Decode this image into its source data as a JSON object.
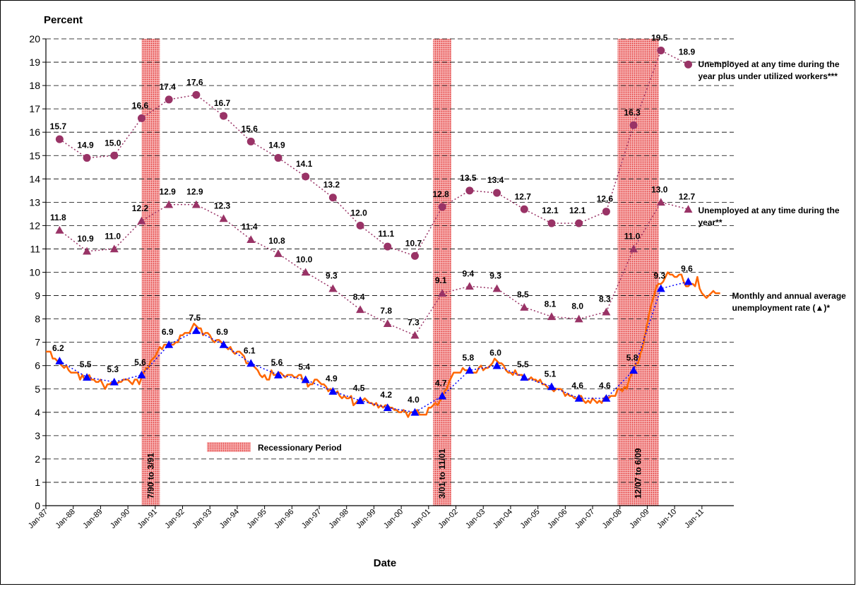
{
  "chart_data": {
    "type": "line",
    "ylabel": "Percent",
    "xlabel": "Date",
    "ylim": [
      0,
      20
    ],
    "yticks": [
      0,
      1,
      2,
      3,
      4,
      5,
      6,
      7,
      8,
      9,
      10,
      11,
      12,
      13,
      14,
      15,
      16,
      17,
      18,
      19,
      20
    ],
    "xlim": [
      "1987-01",
      "2012-03"
    ],
    "xticks": [
      {
        "value": "1987-01",
        "label": "Jan-87"
      },
      {
        "value": "1988-01",
        "label": "Jan-88"
      },
      {
        "value": "1989-01",
        "label": "Jan-89"
      },
      {
        "value": "1990-01",
        "label": "Jan-90"
      },
      {
        "value": "1991-01",
        "label": "Jan-91"
      },
      {
        "value": "1992-01",
        "label": "Jan-92"
      },
      {
        "value": "1993-01",
        "label": "Jan-93"
      },
      {
        "value": "1994-01",
        "label": "Jan-94"
      },
      {
        "value": "1995-01",
        "label": "Jan-95"
      },
      {
        "value": "1996-01",
        "label": "Jan-96"
      },
      {
        "value": "1997-01",
        "label": "Jan-97"
      },
      {
        "value": "1998-01",
        "label": "Jan-98"
      },
      {
        "value": "1999-01",
        "label": "Jan-99"
      },
      {
        "value": "2000-01",
        "label": "Jan-00"
      },
      {
        "value": "2001-01",
        "label": "Jan-01"
      },
      {
        "value": "2002-01",
        "label": "Jan-02"
      },
      {
        "value": "2003-01",
        "label": "Jan-03"
      },
      {
        "value": "2004-01",
        "label": "Jan-04"
      },
      {
        "value": "2005-01",
        "label": "Jan-05"
      },
      {
        "value": "2006-01",
        "label": "Jan-06"
      },
      {
        "value": "2007-01",
        "label": "Jan-07"
      },
      {
        "value": "2008-01",
        "label": "Jan-08"
      },
      {
        "value": "2009-01",
        "label": "Jan-09"
      },
      {
        "value": "2010-01",
        "label": "Jan-10"
      },
      {
        "value": "2011-01",
        "label": "Jan-11"
      }
    ],
    "grid": true,
    "recession_legend": "Recessionary Period",
    "recessions": [
      {
        "start": "1990-07",
        "end": "1991-03",
        "label": "7/90 to 3/91"
      },
      {
        "start": "2001-03",
        "end": "2001-11",
        "label": "3/01 to 11/01"
      },
      {
        "start": "2007-12",
        "end": "2009-06",
        "label": "12/07 to 6/09"
      }
    ],
    "series": [
      {
        "color": "#ff6600",
        "marker": "none",
        "style": "solid",
        "x": [
          "1987-01",
          "1987-02",
          "1987-03",
          "1987-04",
          "1987-05",
          "1987-06",
          "1987-07",
          "1987-08",
          "1987-09",
          "1987-10",
          "1987-11",
          "1987-12",
          "1988-01",
          "1988-02",
          "1988-03",
          "1988-04",
          "1988-05",
          "1988-06",
          "1988-07",
          "1988-08",
          "1988-09",
          "1988-10",
          "1988-11",
          "1988-12",
          "1989-01",
          "1989-02",
          "1989-03",
          "1989-04",
          "1989-05",
          "1989-06",
          "1989-07",
          "1989-08",
          "1989-09",
          "1989-10",
          "1989-11",
          "1989-12",
          "1990-01",
          "1990-02",
          "1990-03",
          "1990-04",
          "1990-05",
          "1990-06",
          "1990-07",
          "1990-08",
          "1990-09",
          "1990-10",
          "1990-11",
          "1990-12",
          "1991-01",
          "1991-02",
          "1991-03",
          "1991-04",
          "1991-05",
          "1991-06",
          "1991-07",
          "1991-08",
          "1991-09",
          "1991-10",
          "1991-11",
          "1991-12",
          "1992-01",
          "1992-02",
          "1992-03",
          "1992-04",
          "1992-05",
          "1992-06",
          "1992-07",
          "1992-08",
          "1992-09",
          "1992-10",
          "1992-11",
          "1992-12",
          "1993-01",
          "1993-02",
          "1993-03",
          "1993-04",
          "1993-05",
          "1993-06",
          "1993-07",
          "1993-08",
          "1993-09",
          "1993-10",
          "1993-11",
          "1993-12",
          "1994-01",
          "1994-02",
          "1994-03",
          "1994-04",
          "1994-05",
          "1994-06",
          "1994-07",
          "1994-08",
          "1994-09",
          "1994-10",
          "1994-11",
          "1994-12",
          "1995-01",
          "1995-02",
          "1995-03",
          "1995-04",
          "1995-05",
          "1995-06",
          "1995-07",
          "1995-08",
          "1995-09",
          "1995-10",
          "1995-11",
          "1995-12",
          "1996-01",
          "1996-02",
          "1996-03",
          "1996-04",
          "1996-05",
          "1996-06",
          "1996-07",
          "1996-08",
          "1996-09",
          "1996-10",
          "1996-11",
          "1996-12",
          "1997-01",
          "1997-02",
          "1997-03",
          "1997-04",
          "1997-05",
          "1997-06",
          "1997-07",
          "1997-08",
          "1997-09",
          "1997-10",
          "1997-11",
          "1997-12",
          "1998-01",
          "1998-02",
          "1998-03",
          "1998-04",
          "1998-05",
          "1998-06",
          "1998-07",
          "1998-08",
          "1998-09",
          "1998-10",
          "1998-11",
          "1998-12",
          "1999-01",
          "1999-02",
          "1999-03",
          "1999-04",
          "1999-05",
          "1999-06",
          "1999-07",
          "1999-08",
          "1999-09",
          "1999-10",
          "1999-11",
          "1999-12",
          "2000-01",
          "2000-02",
          "2000-03",
          "2000-04",
          "2000-05",
          "2000-06",
          "2000-07",
          "2000-08",
          "2000-09",
          "2000-10",
          "2000-11",
          "2000-12",
          "2001-01",
          "2001-02",
          "2001-03",
          "2001-04",
          "2001-05",
          "2001-06",
          "2001-07",
          "2001-08",
          "2001-09",
          "2001-10",
          "2001-11",
          "2001-12",
          "2002-01",
          "2002-02",
          "2002-03",
          "2002-04",
          "2002-05",
          "2002-06",
          "2002-07",
          "2002-08",
          "2002-09",
          "2002-10",
          "2002-11",
          "2002-12",
          "2003-01",
          "2003-02",
          "2003-03",
          "2003-04",
          "2003-05",
          "2003-06",
          "2003-07",
          "2003-08",
          "2003-09",
          "2003-10",
          "2003-11",
          "2003-12",
          "2004-01",
          "2004-02",
          "2004-03",
          "2004-04",
          "2004-05",
          "2004-06",
          "2004-07",
          "2004-08",
          "2004-09",
          "2004-10",
          "2004-11",
          "2004-12",
          "2005-01",
          "2005-02",
          "2005-03",
          "2005-04",
          "2005-05",
          "2005-06",
          "2005-07",
          "2005-08",
          "2005-09",
          "2005-10",
          "2005-11",
          "2005-12",
          "2006-01",
          "2006-02",
          "2006-03",
          "2006-04",
          "2006-05",
          "2006-06",
          "2006-07",
          "2006-08",
          "2006-09",
          "2006-10",
          "2006-11",
          "2006-12",
          "2007-01",
          "2007-02",
          "2007-03",
          "2007-04",
          "2007-05",
          "2007-06",
          "2007-07",
          "2007-08",
          "2007-09",
          "2007-10",
          "2007-11",
          "2007-12",
          "2008-01",
          "2008-02",
          "2008-03",
          "2008-04",
          "2008-05",
          "2008-06",
          "2008-07",
          "2008-08",
          "2008-09",
          "2008-10",
          "2008-11",
          "2008-12",
          "2009-01",
          "2009-02",
          "2009-03",
          "2009-04",
          "2009-05",
          "2009-06",
          "2009-07",
          "2009-08",
          "2009-09",
          "2009-10",
          "2009-11",
          "2009-12",
          "2010-01",
          "2010-02",
          "2010-03",
          "2010-04",
          "2010-05",
          "2010-06",
          "2010-07",
          "2010-08",
          "2010-09",
          "2010-10",
          "2010-11",
          "2010-12",
          "2011-01",
          "2011-02",
          "2011-03",
          "2011-04",
          "2011-05",
          "2011-06",
          "2011-07",
          "2011-08",
          "2011-09"
        ],
        "values": [
          6.6,
          6.6,
          6.6,
          6.3,
          6.3,
          6.2,
          6.1,
          6.0,
          5.9,
          6.0,
          5.8,
          5.7,
          5.7,
          5.7,
          5.7,
          5.4,
          5.6,
          5.4,
          5.4,
          5.6,
          5.4,
          5.4,
          5.3,
          5.3,
          5.4,
          5.2,
          5.0,
          5.2,
          5.2,
          5.3,
          5.2,
          5.2,
          5.3,
          5.3,
          5.4,
          5.4,
          5.4,
          5.3,
          5.2,
          5.4,
          5.4,
          5.2,
          5.5,
          5.7,
          5.9,
          5.9,
          6.2,
          6.3,
          6.4,
          6.6,
          6.8,
          6.7,
          6.9,
          6.9,
          6.8,
          6.9,
          6.9,
          7.0,
          7.0,
          7.3,
          7.3,
          7.4,
          7.4,
          7.4,
          7.6,
          7.8,
          7.7,
          7.6,
          7.6,
          7.3,
          7.4,
          7.4,
          7.3,
          7.1,
          7.0,
          7.1,
          7.1,
          7.0,
          6.9,
          6.8,
          6.7,
          6.8,
          6.6,
          6.5,
          6.6,
          6.6,
          6.5,
          6.4,
          6.1,
          6.1,
          6.1,
          6.0,
          5.9,
          5.8,
          5.6,
          5.5,
          5.6,
          5.4,
          5.4,
          5.8,
          5.6,
          5.6,
          5.7,
          5.7,
          5.6,
          5.5,
          5.6,
          5.6,
          5.6,
          5.5,
          5.5,
          5.6,
          5.6,
          5.3,
          5.5,
          5.1,
          5.2,
          5.2,
          5.4,
          5.4,
          5.3,
          5.2,
          5.2,
          5.1,
          4.9,
          5.0,
          4.9,
          4.8,
          4.9,
          4.7,
          4.6,
          4.7,
          4.6,
          4.6,
          4.7,
          4.3,
          4.4,
          4.5,
          4.5,
          4.5,
          4.6,
          4.5,
          4.4,
          4.4,
          4.3,
          4.4,
          4.2,
          4.3,
          4.2,
          4.3,
          4.3,
          4.2,
          4.2,
          4.1,
          4.1,
          4.0,
          4.0,
          4.1,
          4.0,
          3.8,
          4.0,
          4.0,
          4.0,
          4.1,
          3.9,
          3.9,
          3.9,
          3.9,
          4.2,
          4.2,
          4.3,
          4.4,
          4.3,
          4.5,
          4.6,
          4.9,
          5.0,
          5.3,
          5.5,
          5.7,
          5.7,
          5.7,
          5.7,
          5.9,
          5.8,
          5.8,
          5.8,
          5.7,
          5.7,
          5.7,
          5.9,
          6.0,
          5.8,
          5.9,
          5.9,
          6.0,
          6.1,
          6.3,
          6.2,
          6.1,
          6.1,
          6.0,
          5.8,
          5.7,
          5.7,
          5.6,
          5.8,
          5.6,
          5.6,
          5.6,
          5.5,
          5.4,
          5.4,
          5.5,
          5.4,
          5.4,
          5.3,
          5.4,
          5.2,
          5.2,
          5.1,
          5.0,
          5.0,
          4.9,
          5.0,
          5.0,
          5.0,
          4.9,
          4.7,
          4.8,
          4.7,
          4.7,
          4.6,
          4.6,
          4.7,
          4.7,
          4.5,
          4.4,
          4.5,
          4.4,
          4.6,
          4.5,
          4.4,
          4.5,
          4.4,
          4.6,
          4.7,
          4.6,
          4.7,
          4.7,
          4.7,
          5.0,
          5.0,
          4.9,
          5.1,
          5.0,
          5.4,
          5.6,
          5.8,
          6.1,
          6.1,
          6.5,
          6.8,
          7.3,
          7.8,
          8.3,
          8.7,
          9.0,
          9.4,
          9.5,
          9.5,
          9.6,
          9.8,
          10.0,
          9.9,
          9.9,
          9.8,
          9.8,
          9.9,
          9.9,
          9.6,
          9.4,
          9.4,
          9.5,
          9.5,
          9.4,
          9.8,
          9.3,
          9.1,
          9.0,
          8.9,
          9.0,
          9.1,
          9.2,
          9.1,
          9.1,
          9.1
        ]
      },
      {
        "name": "Unemployed at any time during the year plus under utilized workers***",
        "color": "#993366",
        "marker": "circle",
        "style": "dotted",
        "x": [
          "1987-07",
          "1988-07",
          "1989-07",
          "1990-07",
          "1991-07",
          "1992-07",
          "1993-07",
          "1994-07",
          "1995-07",
          "1996-07",
          "1997-07",
          "1998-07",
          "1999-07",
          "2000-07",
          "2001-07",
          "2002-07",
          "2003-07",
          "2004-07",
          "2005-07",
          "2006-07",
          "2007-07",
          "2008-07",
          "2009-07",
          "2010-07"
        ],
        "values": [
          15.7,
          14.9,
          15,
          16.6,
          17.4,
          17.6,
          16.7,
          15.6,
          14.9,
          14.1,
          13.2,
          12,
          11.1,
          10.7,
          12.8,
          13.5,
          13.4,
          12.7,
          12.1,
          12.1,
          12.6,
          16.3,
          19.5,
          18.9
        ],
        "value_labels": [
          "15.7",
          "14.9",
          "15.0",
          "16.6",
          "17.4",
          "17.6",
          "16.7",
          "15.6",
          "14.9",
          "14.1",
          "13.2",
          "12.0",
          "11.1",
          "10.7",
          "12.8",
          "13.5",
          "13.4",
          "12.7",
          "12.1",
          "12.1",
          "12.6",
          "16.3",
          "19.5",
          "18.9"
        ]
      },
      {
        "name": "Unemployed at any time during the year**",
        "color": "#993366",
        "marker": "triangle",
        "style": "dotted",
        "x": [
          "1987-07",
          "1988-07",
          "1989-07",
          "1990-07",
          "1991-07",
          "1992-07",
          "1993-07",
          "1994-07",
          "1995-07",
          "1996-07",
          "1997-07",
          "1998-07",
          "1999-07",
          "2000-07",
          "2001-07",
          "2002-07",
          "2003-07",
          "2004-07",
          "2005-07",
          "2006-07",
          "2007-07",
          "2008-07",
          "2009-07",
          "2010-07"
        ],
        "values": [
          11.8,
          10.9,
          11,
          12.2,
          12.9,
          12.9,
          12.3,
          11.4,
          10.8,
          10,
          9.3,
          8.4,
          7.8,
          7.3,
          9.1,
          9.4,
          9.3,
          8.5,
          8.1,
          8,
          8.3,
          11,
          13,
          12.7
        ],
        "value_labels": [
          "11.8",
          "10.9",
          "11.0",
          "12.2",
          "12.9",
          "12.9",
          "12.3",
          "11.4",
          "10.8",
          "10.0",
          "9.3",
          "8.4",
          "7.8",
          "7.3",
          "9.1",
          "9.4",
          "9.3",
          "8.5",
          "8.1",
          "8.0",
          "8.3",
          "11.0",
          "13.0",
          "12.7"
        ]
      },
      {
        "name": "Monthly and annual average unemployment rate (▲)*",
        "color": "#0000ff",
        "marker": "triangle",
        "style": "dotted",
        "x": [
          "1987-07",
          "1988-07",
          "1989-07",
          "1990-07",
          "1991-07",
          "1992-07",
          "1993-07",
          "1994-07",
          "1995-07",
          "1996-07",
          "1997-07",
          "1998-07",
          "1999-07",
          "2000-07",
          "2001-07",
          "2002-07",
          "2003-07",
          "2004-07",
          "2005-07",
          "2006-07",
          "2007-07",
          "2008-07",
          "2009-07",
          "2010-07"
        ],
        "values": [
          6.2,
          5.5,
          5.3,
          5.6,
          6.9,
          7.5,
          6.9,
          6.1,
          5.6,
          5.4,
          4.9,
          4.5,
          4.2,
          4,
          4.7,
          5.8,
          6,
          5.5,
          5.1,
          4.6,
          4.6,
          5.8,
          9.3,
          9.6
        ],
        "value_labels": [
          "6.2",
          "5.5",
          "5.3",
          "5.6",
          "6.9",
          "7.5",
          "6.9",
          "6.1",
          "5.6",
          "5.4",
          "4.9",
          "4.5",
          "4.2",
          "4.0",
          "4.7",
          "5.8",
          "6.0",
          "5.5",
          "5.1",
          "4.6",
          "4.6",
          "5.8",
          "9.3",
          "9.6"
        ]
      }
    ]
  }
}
